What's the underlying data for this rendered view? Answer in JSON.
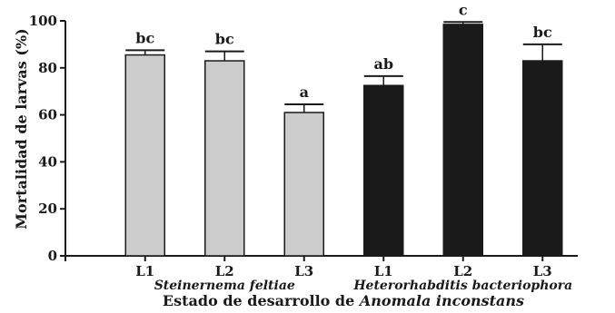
{
  "chart_data": {
    "type": "bar",
    "ylabel": "Mortalidad de larvas (%)",
    "xlabel_prefix": "Estado de desarrollo de ",
    "xlabel_italic": "Anomala inconstans",
    "ylim": [
      0,
      100
    ],
    "yticks": [
      "0",
      "20",
      "40",
      "60",
      "80",
      "100"
    ],
    "categories": [
      "L1",
      "L2",
      "L3",
      "L1",
      "L2",
      "L3"
    ],
    "groups": [
      {
        "label": "Steinernema feltiae",
        "indices": [
          0,
          1,
          2
        ]
      },
      {
        "label": "Heterorhabditis bacteriophora",
        "indices": [
          3,
          4,
          5
        ]
      }
    ],
    "values": [
      85.5,
      83.0,
      61.0,
      72.5,
      98.5,
      83.0
    ],
    "errors": [
      2.0,
      4.0,
      3.5,
      4.0,
      1.0,
      7.0
    ],
    "significance": [
      "bc",
      "bc",
      "a",
      "ab",
      "c",
      "bc"
    ],
    "bar_colors": [
      "#cccccc",
      "#cccccc",
      "#cccccc",
      "#1a1a1a",
      "#1a1a1a",
      "#1a1a1a"
    ],
    "grid": false
  }
}
